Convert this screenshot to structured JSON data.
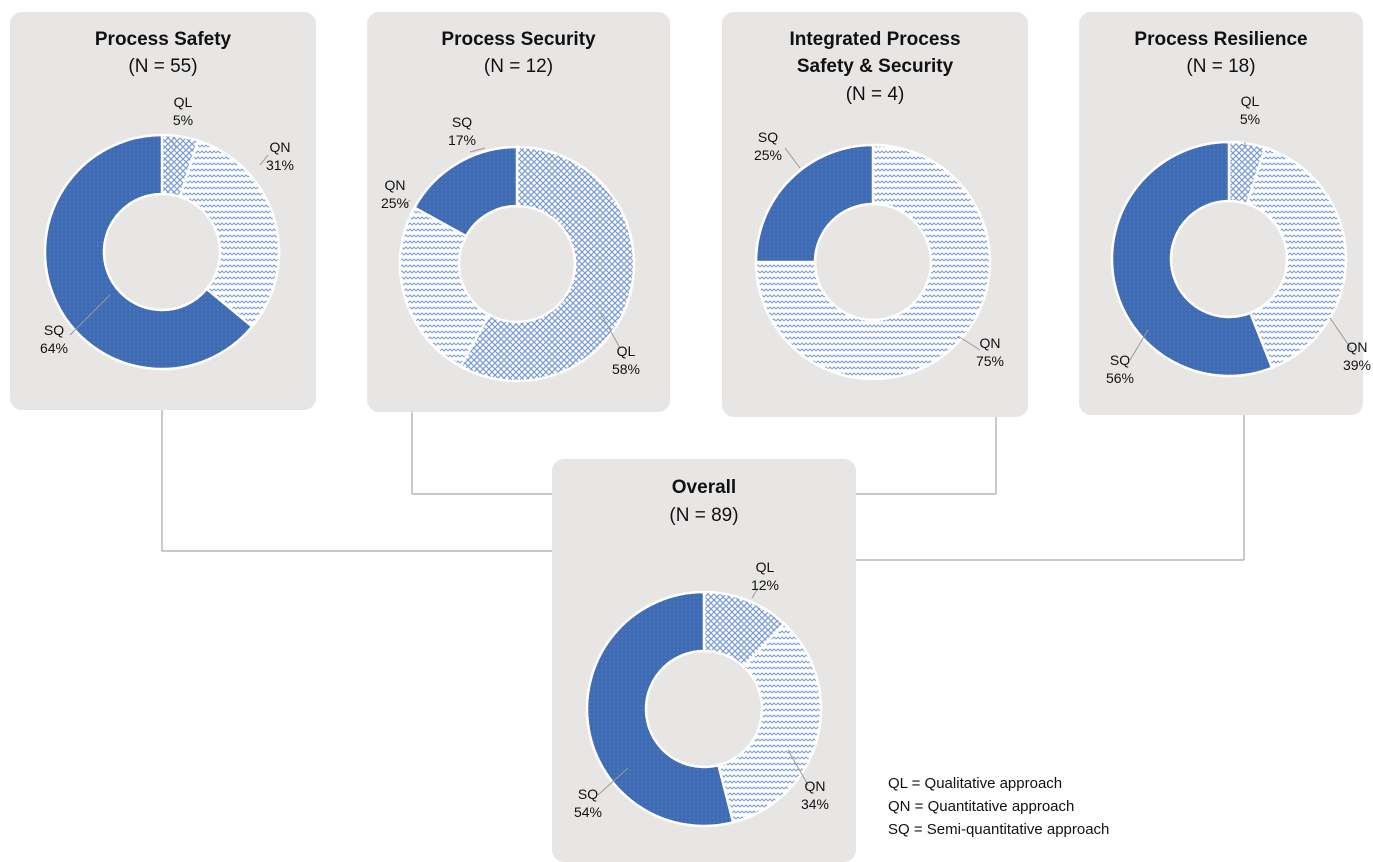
{
  "chart_data": [
    {
      "type": "pie",
      "variant": "donut",
      "title": "Process Safety",
      "subtitle": "(N = 55)",
      "slices": [
        {
          "label": "QL",
          "value": 5,
          "value_label": "5%",
          "pattern": "crosshatch"
        },
        {
          "label": "QN",
          "value": 31,
          "value_label": "31%",
          "pattern": "wave"
        },
        {
          "label": "SQ",
          "value": 64,
          "value_label": "64%",
          "pattern": "solid"
        }
      ]
    },
    {
      "type": "pie",
      "variant": "donut",
      "title": "Process Security",
      "subtitle": "(N = 12)",
      "slices": [
        {
          "label": "QL",
          "value": 58,
          "value_label": "58%",
          "pattern": "crosshatch"
        },
        {
          "label": "QN",
          "value": 25,
          "value_label": "25%",
          "pattern": "wave"
        },
        {
          "label": "SQ",
          "value": 17,
          "value_label": "17%",
          "pattern": "solid"
        }
      ]
    },
    {
      "type": "pie",
      "variant": "donut",
      "title": "Integrated Process Safety & Security",
      "title_lines": [
        "Integrated Process",
        "Safety & Security"
      ],
      "subtitle": "(N = 4)",
      "slices": [
        {
          "label": "QN",
          "value": 75,
          "value_label": "75%",
          "pattern": "wave"
        },
        {
          "label": "SQ",
          "value": 25,
          "value_label": "25%",
          "pattern": "solid"
        }
      ]
    },
    {
      "type": "pie",
      "variant": "donut",
      "title": "Process Resilience",
      "subtitle": "(N = 18)",
      "slices": [
        {
          "label": "QL",
          "value": 5,
          "value_label": "5%",
          "pattern": "crosshatch"
        },
        {
          "label": "QN",
          "value": 39,
          "value_label": "39%",
          "pattern": "wave"
        },
        {
          "label": "SQ",
          "value": 56,
          "value_label": "56%",
          "pattern": "solid"
        }
      ]
    },
    {
      "type": "pie",
      "variant": "donut",
      "title": "Overall",
      "subtitle": "(N = 89)",
      "slices": [
        {
          "label": "QL",
          "value": 12,
          "value_label": "12%",
          "pattern": "crosshatch"
        },
        {
          "label": "QN",
          "value": 34,
          "value_label": "34%",
          "pattern": "wave"
        },
        {
          "label": "SQ",
          "value": 54,
          "value_label": "54%",
          "pattern": "solid"
        }
      ]
    }
  ],
  "legend": {
    "entries": [
      {
        "code": "QL",
        "text": "= Qualitative approach"
      },
      {
        "code": "QN",
        "text": "= Quantitative approach"
      },
      {
        "code": "SQ",
        "text": "= Semi-quantitative approach"
      }
    ]
  },
  "colors": {
    "panel": "#e8e6e5",
    "accent": "#3e6bb4",
    "pattern_light": "#7c9dd3",
    "connector": "#a6a6a6"
  }
}
